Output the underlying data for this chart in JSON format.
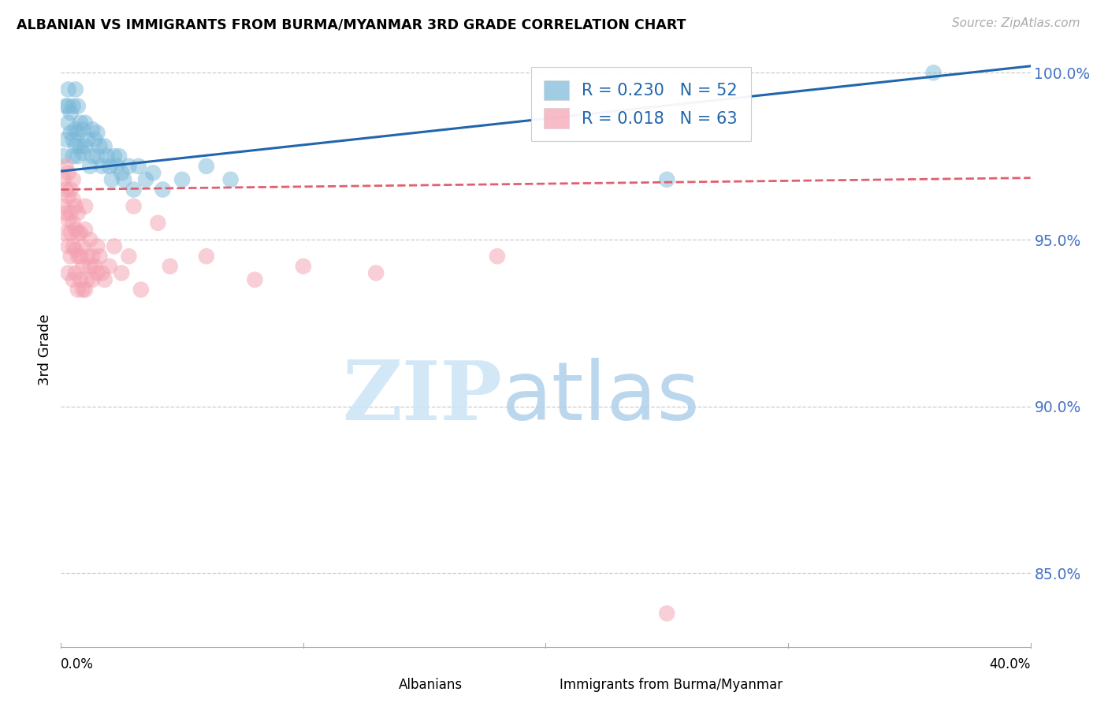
{
  "title": "ALBANIAN VS IMMIGRANTS FROM BURMA/MYANMAR 3RD GRADE CORRELATION CHART",
  "source": "Source: ZipAtlas.com",
  "ylabel": "3rd Grade",
  "xmin": 0.0,
  "xmax": 0.4,
  "ymin": 0.828,
  "ymax": 1.006,
  "blue_R": 0.23,
  "blue_N": 52,
  "pink_R": 0.018,
  "pink_N": 63,
  "blue_color": "#7ab8d9",
  "pink_color": "#f4a0b0",
  "blue_line_color": "#2166ac",
  "pink_line_color": "#e06070",
  "ytick_positions": [
    0.85,
    0.9,
    0.95,
    1.0
  ],
  "ytick_labels": [
    "85.0%",
    "90.0%",
    "95.0%",
    "100.0%"
  ],
  "blue_scatter_x": [
    0.001,
    0.002,
    0.002,
    0.003,
    0.003,
    0.003,
    0.004,
    0.004,
    0.005,
    0.005,
    0.005,
    0.006,
    0.006,
    0.006,
    0.007,
    0.007,
    0.007,
    0.008,
    0.008,
    0.009,
    0.009,
    0.01,
    0.01,
    0.011,
    0.012,
    0.013,
    0.013,
    0.014,
    0.015,
    0.015,
    0.016,
    0.017,
    0.018,
    0.019,
    0.02,
    0.021,
    0.022,
    0.023,
    0.024,
    0.025,
    0.026,
    0.028,
    0.03,
    0.032,
    0.035,
    0.038,
    0.042,
    0.05,
    0.06,
    0.07,
    0.25,
    0.36
  ],
  "blue_scatter_y": [
    0.975,
    0.98,
    0.99,
    0.985,
    0.99,
    0.995,
    0.982,
    0.988,
    0.975,
    0.98,
    0.99,
    0.978,
    0.983,
    0.995,
    0.975,
    0.982,
    0.99,
    0.978,
    0.985,
    0.976,
    0.983,
    0.978,
    0.985,
    0.98,
    0.972,
    0.975,
    0.983,
    0.98,
    0.975,
    0.982,
    0.978,
    0.972,
    0.978,
    0.975,
    0.972,
    0.968,
    0.975,
    0.972,
    0.975,
    0.97,
    0.968,
    0.972,
    0.965,
    0.972,
    0.968,
    0.97,
    0.965,
    0.968,
    0.972,
    0.968,
    0.968,
    1.0
  ],
  "pink_scatter_x": [
    0.001,
    0.001,
    0.002,
    0.002,
    0.002,
    0.002,
    0.003,
    0.003,
    0.003,
    0.003,
    0.003,
    0.004,
    0.004,
    0.004,
    0.004,
    0.005,
    0.005,
    0.005,
    0.005,
    0.005,
    0.006,
    0.006,
    0.006,
    0.006,
    0.007,
    0.007,
    0.007,
    0.007,
    0.008,
    0.008,
    0.008,
    0.009,
    0.009,
    0.009,
    0.01,
    0.01,
    0.01,
    0.011,
    0.011,
    0.012,
    0.012,
    0.013,
    0.013,
    0.014,
    0.015,
    0.015,
    0.016,
    0.017,
    0.018,
    0.02,
    0.022,
    0.025,
    0.028,
    0.03,
    0.033,
    0.04,
    0.045,
    0.06,
    0.08,
    0.1,
    0.13,
    0.18,
    0.25
  ],
  "pink_scatter_y": [
    0.968,
    0.96,
    0.972,
    0.965,
    0.958,
    0.952,
    0.97,
    0.963,
    0.956,
    0.948,
    0.94,
    0.965,
    0.958,
    0.952,
    0.945,
    0.968,
    0.962,
    0.955,
    0.948,
    0.938,
    0.96,
    0.953,
    0.947,
    0.94,
    0.958,
    0.952,
    0.945,
    0.935,
    0.952,
    0.945,
    0.938,
    0.948,
    0.942,
    0.935,
    0.96,
    0.953,
    0.935,
    0.945,
    0.938,
    0.95,
    0.942,
    0.945,
    0.938,
    0.942,
    0.948,
    0.94,
    0.945,
    0.94,
    0.938,
    0.942,
    0.948,
    0.94,
    0.945,
    0.96,
    0.935,
    0.955,
    0.942,
    0.945,
    0.938,
    0.942,
    0.94,
    0.945,
    0.838
  ]
}
